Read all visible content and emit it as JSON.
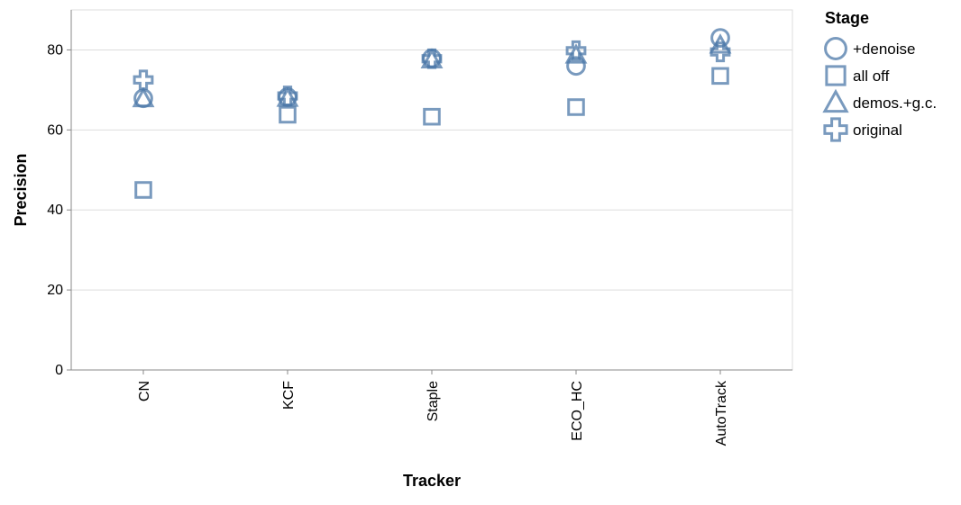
{
  "chart_data": {
    "type": "scatter",
    "xlabel": "Tracker",
    "ylabel": "Precision",
    "categories": [
      "CN",
      "KCF",
      "Staple",
      "ECO_HC",
      "AutoTrack"
    ],
    "ylim": [
      0,
      90
    ],
    "yticks": [
      0,
      20,
      40,
      60,
      80
    ],
    "grid": true,
    "legend": {
      "title": "Stage",
      "position": "right",
      "entries": [
        {
          "label": "+denoise",
          "shape": "circle"
        },
        {
          "label": "all off",
          "shape": "square"
        },
        {
          "label": "demos.+g.c.",
          "shape": "triangle"
        },
        {
          "label": "original",
          "shape": "cross"
        }
      ]
    },
    "series": [
      {
        "name": "+denoise",
        "shape": "circle",
        "values": [
          67.9,
          68.2,
          77.9,
          76.0,
          83.0
        ]
      },
      {
        "name": "all off",
        "shape": "square",
        "values": [
          45.0,
          63.8,
          63.3,
          65.7,
          73.5
        ]
      },
      {
        "name": "demos.+g.c.",
        "shape": "triangle",
        "values": [
          67.8,
          67.9,
          77.5,
          78.7,
          81.2
        ]
      },
      {
        "name": "original",
        "shape": "cross",
        "values": [
          72.5,
          68.5,
          77.8,
          79.8,
          79.5
        ]
      }
    ],
    "colors": {
      "marker": "#4c78a8",
      "grid": "#dddddd",
      "axis": "#888888"
    }
  }
}
